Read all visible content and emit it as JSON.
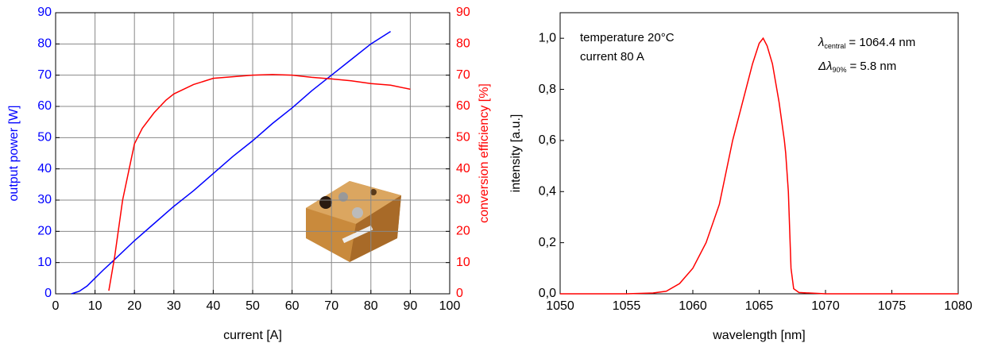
{
  "chart_data": [
    {
      "type": "line",
      "xlabel": "current [A]",
      "ylabel": "output power [W]",
      "y2label": "conversion efficiency [%]",
      "xlim": [
        0,
        100
      ],
      "xticks": [
        0,
        10,
        20,
        30,
        40,
        50,
        60,
        70,
        80,
        90,
        100
      ],
      "ylim": [
        0,
        90
      ],
      "yticks": [
        0,
        10,
        20,
        30,
        40,
        50,
        60,
        70,
        80,
        90
      ],
      "y2lim": [
        0,
        90
      ],
      "y2ticks": [
        0,
        10,
        20,
        30,
        40,
        50,
        60,
        70,
        80,
        90
      ],
      "grid": true,
      "y_color": "#0000ff",
      "y2_color": "#ff0000",
      "series": [
        {
          "axis": "y",
          "color": "#0000ff",
          "x": [
            4,
            6,
            8,
            10,
            12,
            15,
            20,
            25,
            30,
            35,
            40,
            45,
            50,
            55,
            60,
            65,
            70,
            75,
            80,
            85
          ],
          "values": [
            0,
            0.8,
            2.5,
            5,
            7.5,
            11,
            17,
            22.5,
            28,
            33,
            38.5,
            44,
            49,
            54.5,
            59.5,
            65,
            70,
            75,
            80,
            84
          ]
        },
        {
          "axis": "y2",
          "color": "#ff0000",
          "x": [
            13.5,
            15,
            17,
            19,
            20,
            22,
            25,
            28,
            30,
            35,
            40,
            45,
            50,
            55,
            60,
            65,
            70,
            75,
            80,
            85,
            90
          ],
          "values": [
            1,
            12,
            30,
            42,
            48,
            53,
            58,
            62,
            64,
            67,
            69,
            69.5,
            70,
            70.2,
            70,
            69.3,
            68.8,
            68.2,
            67.3,
            66.8,
            65.5
          ]
        }
      ]
    },
    {
      "type": "line",
      "xlabel": "wavelength [nm]",
      "ylabel": "intensity [a.u.]",
      "xlim": [
        1050,
        1080
      ],
      "xticks": [
        1050,
        1055,
        1060,
        1065,
        1070,
        1075,
        1080
      ],
      "ylim": [
        0,
        1.1
      ],
      "yticks": [
        {
          "value": 0,
          "label": "0,0"
        },
        {
          "value": 0.2,
          "label": "0,2"
        },
        {
          "value": 0.4,
          "label": "0,4"
        },
        {
          "value": 0.6,
          "label": "0,6"
        },
        {
          "value": 0.8,
          "label": "0,8"
        },
        {
          "value": 1.0,
          "label": "1,0"
        }
      ],
      "grid": false,
      "annotations": [
        {
          "text": "temperature 20°C"
        },
        {
          "text": "current 80 A"
        },
        {
          "symbol": "λ",
          "subscript": "central",
          "text": "= 1064.4 nm"
        },
        {
          "symbol": "Δλ",
          "subscript": "90%",
          "text": "= 5.8 nm"
        }
      ],
      "series": [
        {
          "axis": "y",
          "color": "#ff0000",
          "x": [
            1050,
            1055,
            1057,
            1058,
            1059,
            1060,
            1061,
            1062,
            1063,
            1064,
            1064.5,
            1065,
            1065.3,
            1065.6,
            1066,
            1066.5,
            1066.9,
            1067,
            1067.2,
            1067.4,
            1067.6,
            1068,
            1070,
            1080
          ],
          "values": [
            0,
            0,
            0.003,
            0.01,
            0.04,
            0.1,
            0.2,
            0.35,
            0.6,
            0.8,
            0.9,
            0.98,
            1.0,
            0.97,
            0.9,
            0.75,
            0.6,
            0.55,
            0.4,
            0.1,
            0.02,
            0.005,
            0,
            0
          ]
        }
      ]
    }
  ]
}
